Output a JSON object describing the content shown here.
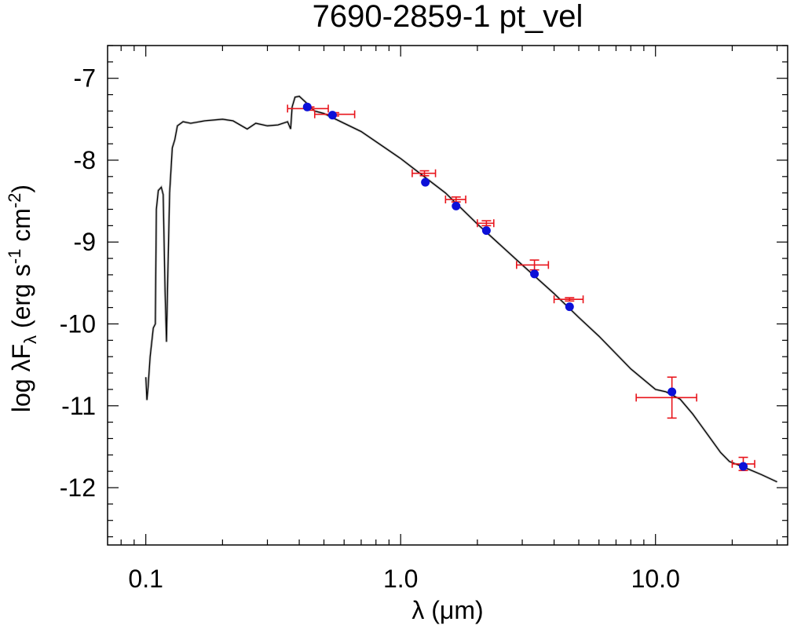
{
  "chart_data": {
    "type": "scatter",
    "title": "7690-2859-1   pt_vel",
    "xlabel": {
      "text": "λ (μm)"
    },
    "ylabel": {
      "prefix": "log λF",
      "sub": "λ",
      "mid1": " (erg s",
      "sup1": "-1",
      "mid2": " cm",
      "sup2": "-2",
      "suffix": ")"
    },
    "x_scale": "log",
    "xlim": [
      0.0708,
      33.0
    ],
    "ylim": [
      -12.7,
      -6.6
    ],
    "xticks": [
      {
        "value": 0.1,
        "label": "0.1"
      },
      {
        "value": 1.0,
        "label": "1.0"
      },
      {
        "value": 10.0,
        "label": "10.0"
      }
    ],
    "yticks": [
      {
        "value": -7,
        "label": "-7"
      },
      {
        "value": -8,
        "label": "-8"
      },
      {
        "value": -9,
        "label": "-9"
      },
      {
        "value": -10,
        "label": "-10"
      },
      {
        "value": -11,
        "label": "-11"
      },
      {
        "value": -12,
        "label": "-12"
      }
    ],
    "colors": {
      "model": "#000000",
      "observed": "#e8141b",
      "synthetic": "#0c10d8"
    },
    "model_sed": [
      [
        0.1,
        -10.65
      ],
      [
        0.101,
        -10.93
      ],
      [
        0.102,
        -10.78
      ],
      [
        0.104,
        -10.4
      ],
      [
        0.107,
        -10.05
      ],
      [
        0.109,
        -10.0
      ],
      [
        0.11,
        -8.6
      ],
      [
        0.112,
        -8.37
      ],
      [
        0.115,
        -8.33
      ],
      [
        0.117,
        -8.42
      ],
      [
        0.119,
        -9.6
      ],
      [
        0.1205,
        -10.22
      ],
      [
        0.122,
        -9.4
      ],
      [
        0.124,
        -8.4
      ],
      [
        0.127,
        -7.85
      ],
      [
        0.13,
        -7.75
      ],
      [
        0.133,
        -7.58
      ],
      [
        0.14,
        -7.53
      ],
      [
        0.15,
        -7.55
      ],
      [
        0.17,
        -7.52
      ],
      [
        0.2,
        -7.5
      ],
      [
        0.22,
        -7.52
      ],
      [
        0.25,
        -7.62
      ],
      [
        0.27,
        -7.55
      ],
      [
        0.3,
        -7.58
      ],
      [
        0.33,
        -7.57
      ],
      [
        0.36,
        -7.53
      ],
      [
        0.37,
        -7.62
      ],
      [
        0.375,
        -7.35
      ],
      [
        0.385,
        -7.23
      ],
      [
        0.4,
        -7.22
      ],
      [
        0.42,
        -7.28
      ],
      [
        0.46,
        -7.4
      ],
      [
        0.5,
        -7.43
      ],
      [
        0.6,
        -7.55
      ],
      [
        0.7,
        -7.65
      ],
      [
        0.85,
        -7.83
      ],
      [
        1.0,
        -7.98
      ],
      [
        1.2,
        -8.17
      ],
      [
        1.5,
        -8.4
      ],
      [
        2.0,
        -8.78
      ],
      [
        3.0,
        -9.28
      ],
      [
        4.0,
        -9.63
      ],
      [
        5.0,
        -9.92
      ],
      [
        6.0,
        -10.15
      ],
      [
        8.0,
        -10.55
      ],
      [
        10.0,
        -10.8
      ],
      [
        11.0,
        -10.83
      ],
      [
        12.5,
        -10.92
      ],
      [
        14.0,
        -11.1
      ],
      [
        16.0,
        -11.35
      ],
      [
        18.0,
        -11.57
      ],
      [
        19.5,
        -11.68
      ],
      [
        21.0,
        -11.72
      ],
      [
        23.0,
        -11.77
      ],
      [
        26.0,
        -11.84
      ],
      [
        30.0,
        -11.93
      ]
    ],
    "observed": [
      {
        "x": 0.44,
        "y": -7.37,
        "xerr": [
          0.36,
          0.52
        ],
        "yerr": 0.02
      },
      {
        "x": 0.55,
        "y": -7.44,
        "xerr": [
          0.46,
          0.66
        ],
        "yerr": 0.02
      },
      {
        "x": 1.24,
        "y": -8.16,
        "xerr": [
          1.11,
          1.37
        ],
        "yerr": 0.03
      },
      {
        "x": 1.65,
        "y": -8.48,
        "xerr": [
          1.5,
          1.8
        ],
        "yerr": 0.03
      },
      {
        "x": 2.17,
        "y": -8.77,
        "xerr": [
          2.0,
          2.32
        ],
        "yerr": 0.03
      },
      {
        "x": 3.35,
        "y": -9.28,
        "xerr": [
          2.85,
          3.8
        ],
        "yerr": 0.06
      },
      {
        "x": 4.6,
        "y": -9.7,
        "xerr": [
          4.0,
          5.2
        ],
        "yerr": 0.02
      },
      {
        "x": 11.6,
        "y": -10.9,
        "xerr": [
          8.4,
          14.5
        ],
        "yerr": 0.25
      },
      {
        "x": 22.1,
        "y": -11.71,
        "xerr": [
          20.0,
          24.5
        ],
        "yerr": 0.08
      }
    ],
    "synthetic": [
      {
        "x": 0.43,
        "y": -7.35
      },
      {
        "x": 0.54,
        "y": -7.45
      },
      {
        "x": 1.25,
        "y": -8.27
      },
      {
        "x": 1.65,
        "y": -8.56
      },
      {
        "x": 2.17,
        "y": -8.86
      },
      {
        "x": 3.35,
        "y": -9.39
      },
      {
        "x": 4.6,
        "y": -9.79
      },
      {
        "x": 11.6,
        "y": -10.83
      },
      {
        "x": 22.1,
        "y": -11.74
      }
    ]
  }
}
